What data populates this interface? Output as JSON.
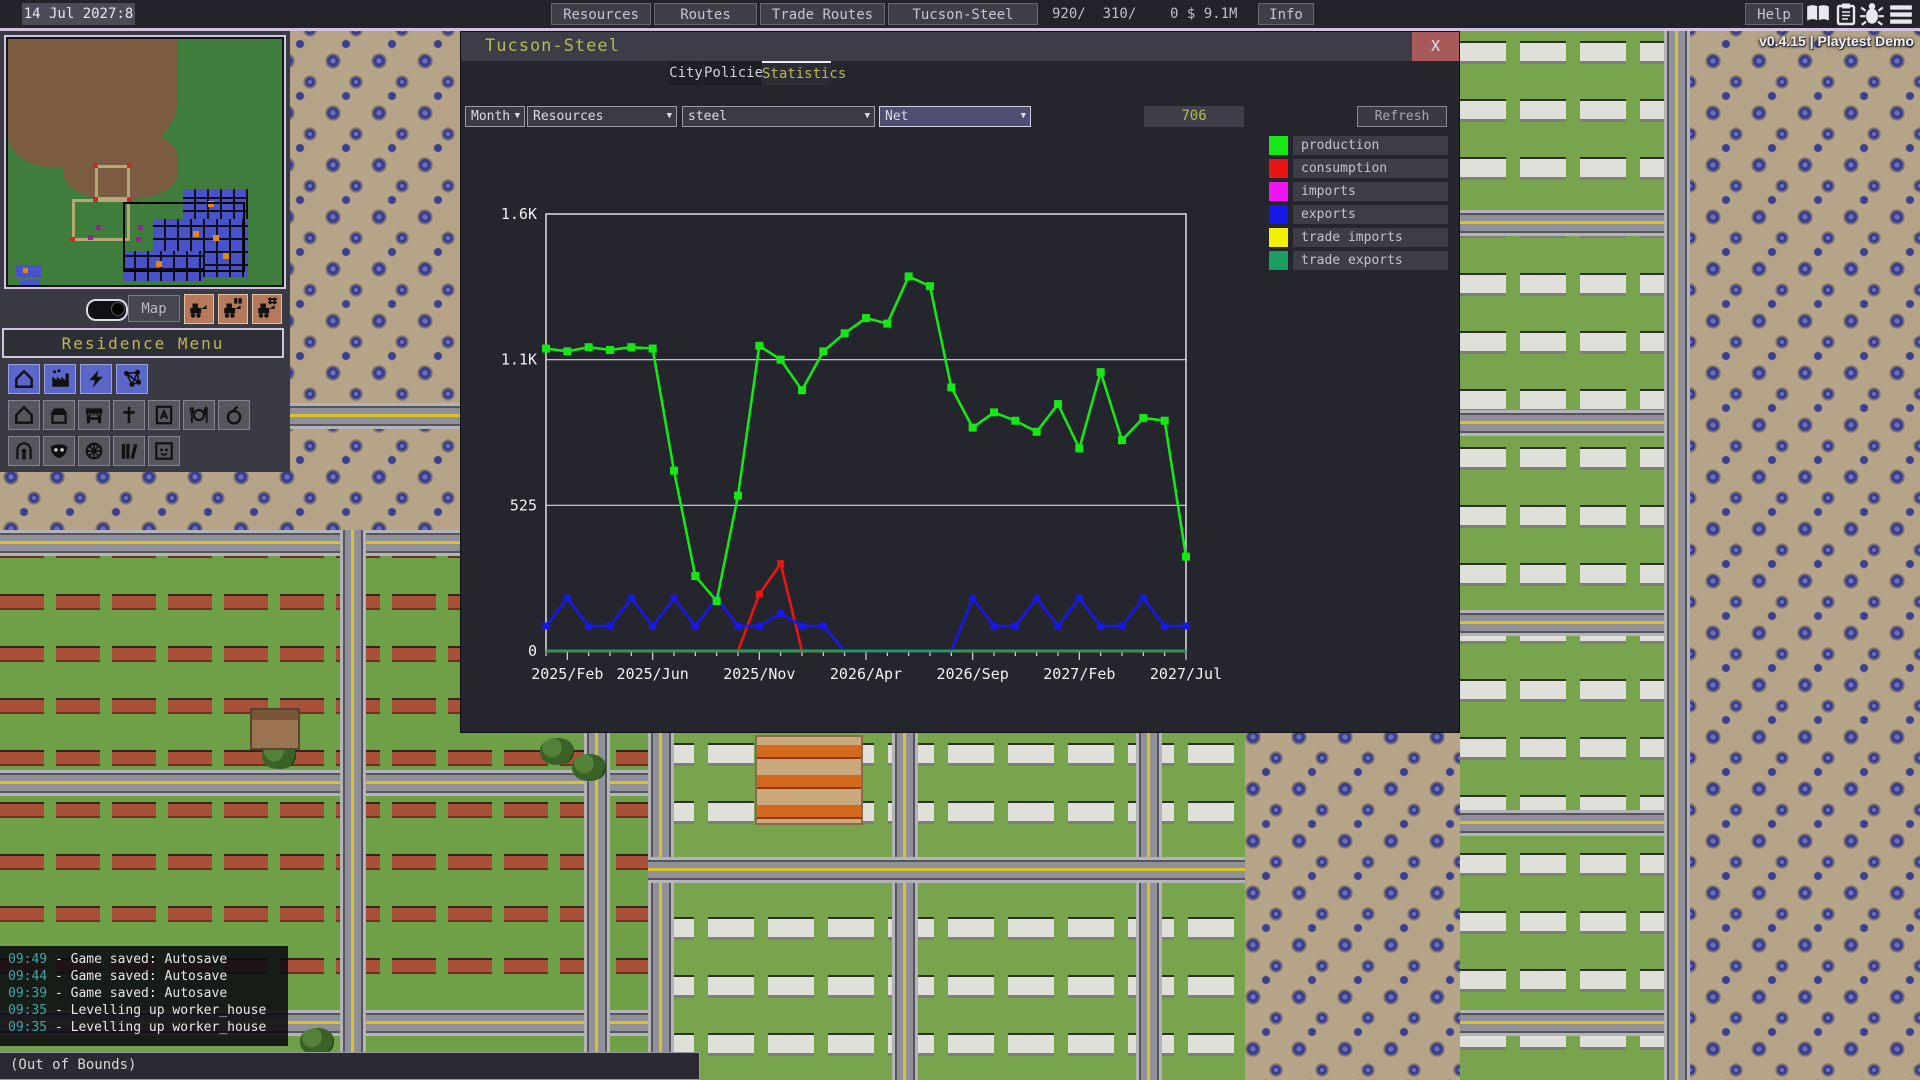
{
  "top_bar": {
    "date": "14 Jul 2027:8",
    "nav_buttons": [
      "Resources",
      "Routes",
      "Trade Routes",
      "Tucson-Steel"
    ],
    "resources_text": "920/  310/    0 $ 9.1M",
    "info_label": "Info",
    "help_label": "Help",
    "icons": [
      "book-icon",
      "clipboard-icon",
      "bug-icon",
      "menu-icon"
    ],
    "version": "v0.4.15 | Playtest Demo"
  },
  "minimap": {
    "map_label": "Map",
    "toggle_state": "on",
    "tool_icons": [
      "excavator-icon",
      "excavator-house-icon",
      "excavator-rail-icon"
    ]
  },
  "build_menu": {
    "title": "Residence Menu",
    "category_icons": [
      "house-icon",
      "factory-icon",
      "power-icon",
      "network-icon"
    ],
    "building_icons": [
      "house-icon",
      "shop-icon",
      "market-stall-icon",
      "church-icon",
      "school-book-icon",
      "restaurant-icon",
      "grocery-apple-icon",
      "inn-icon",
      "theater-mask-icon",
      "sports-ball-icon",
      "library-books-icon",
      "entertainment-face-icon"
    ]
  },
  "dialog": {
    "title": "Tucson-Steel",
    "close_label": "X",
    "tabs": [
      "City",
      "Policies",
      "Statistics"
    ],
    "active_tab": "Statistics",
    "filters": {
      "period": "Month",
      "category": "Resources",
      "resource": "steel",
      "metric": "Net"
    },
    "current_value": "706",
    "refresh_label": "Refresh"
  },
  "chart_data": {
    "type": "line",
    "x_unit": "month",
    "months": [
      "2025/Jan",
      "2025/Feb",
      "2025/Mar",
      "2025/Apr",
      "2025/May",
      "2025/Jun",
      "2025/Jul",
      "2025/Aug",
      "2025/Sep",
      "2025/Oct",
      "2025/Nov",
      "2025/Dec",
      "2026/Jan",
      "2026/Feb",
      "2026/Mar",
      "2026/Apr",
      "2026/May",
      "2026/Jun",
      "2026/Jul",
      "2026/Aug",
      "2026/Sep",
      "2026/Oct",
      "2026/Nov",
      "2026/Dec",
      "2027/Jan",
      "2027/Feb",
      "2027/Mar",
      "2027/Apr",
      "2027/May",
      "2027/Jun",
      "2027/Jul"
    ],
    "x_tick_labels": [
      "2025/Feb",
      "2025/Jun",
      "2025/Nov",
      "2026/Apr",
      "2026/Sep",
      "2027/Feb",
      "2027/Jul"
    ],
    "x_tick_indices": [
      1,
      5,
      10,
      15,
      20,
      25,
      30
    ],
    "ylim": [
      0,
      1575
    ],
    "y_ticks": [
      {
        "v": 0,
        "label": "0"
      },
      {
        "v": 525,
        "label": "525"
      },
      {
        "v": 1050,
        "label": "1.1K"
      },
      {
        "v": 1575,
        "label": "1.6K"
      }
    ],
    "grid": true,
    "legend_position": "top-right",
    "series": [
      {
        "name": "production",
        "color": "#17e617",
        "values": [
          1090,
          1080,
          1095,
          1085,
          1095,
          1090,
          650,
          270,
          180,
          560,
          1100,
          1050,
          940,
          1080,
          1145,
          1200,
          1180,
          1350,
          1315,
          950,
          805,
          860,
          830,
          790,
          890,
          730,
          1005,
          760,
          840,
          830,
          340
        ]
      },
      {
        "name": "consumption",
        "color": "#e81515",
        "values": [
          0,
          0,
          0,
          0,
          0,
          0,
          0,
          0,
          0,
          0,
          205,
          315,
          0,
          0,
          0,
          0,
          0,
          0,
          0,
          0,
          0,
          0,
          0,
          0,
          0,
          0,
          0,
          0,
          0,
          0,
          0
        ]
      },
      {
        "name": "imports",
        "color": "#f015f0",
        "values": [
          0,
          0,
          0,
          0,
          0,
          0,
          0,
          0,
          0,
          0,
          0,
          0,
          0,
          0,
          0,
          0,
          0,
          0,
          0,
          0,
          0,
          0,
          0,
          0,
          0,
          0,
          0,
          0,
          0,
          0,
          0
        ]
      },
      {
        "name": "exports",
        "color": "#1818e8",
        "values": [
          90,
          190,
          90,
          90,
          190,
          90,
          190,
          90,
          190,
          90,
          90,
          135,
          90,
          90,
          0,
          0,
          0,
          0,
          0,
          0,
          190,
          90,
          90,
          190,
          90,
          190,
          90,
          90,
          190,
          90,
          90
        ]
      },
      {
        "name": "trade imports",
        "color": "#f2f200",
        "values": [
          0,
          0,
          0,
          0,
          0,
          0,
          0,
          0,
          0,
          0,
          0,
          0,
          0,
          0,
          0,
          0,
          0,
          0,
          0,
          0,
          0,
          0,
          0,
          0,
          0,
          0,
          0,
          0,
          0,
          0,
          0
        ]
      },
      {
        "name": "trade exports",
        "color": "#1c9e62",
        "values": [
          0,
          0,
          0,
          0,
          0,
          0,
          0,
          0,
          0,
          0,
          0,
          0,
          0,
          0,
          0,
          0,
          0,
          0,
          0,
          0,
          0,
          0,
          0,
          0,
          0,
          0,
          0,
          0,
          0,
          0,
          0
        ]
      }
    ]
  },
  "log": {
    "entries": [
      {
        "time": "09:49",
        "text": " - Game saved: Autosave"
      },
      {
        "time": "09:44",
        "text": " - Game saved: Autosave"
      },
      {
        "time": "09:39",
        "text": " - Game saved: Autosave"
      },
      {
        "time": "09:35",
        "text": " - Levelling up worker_house"
      },
      {
        "time": "09:35",
        "text": " - Levelling up worker_house"
      }
    ]
  },
  "status_bar": {
    "text": "(Out of Bounds)"
  }
}
